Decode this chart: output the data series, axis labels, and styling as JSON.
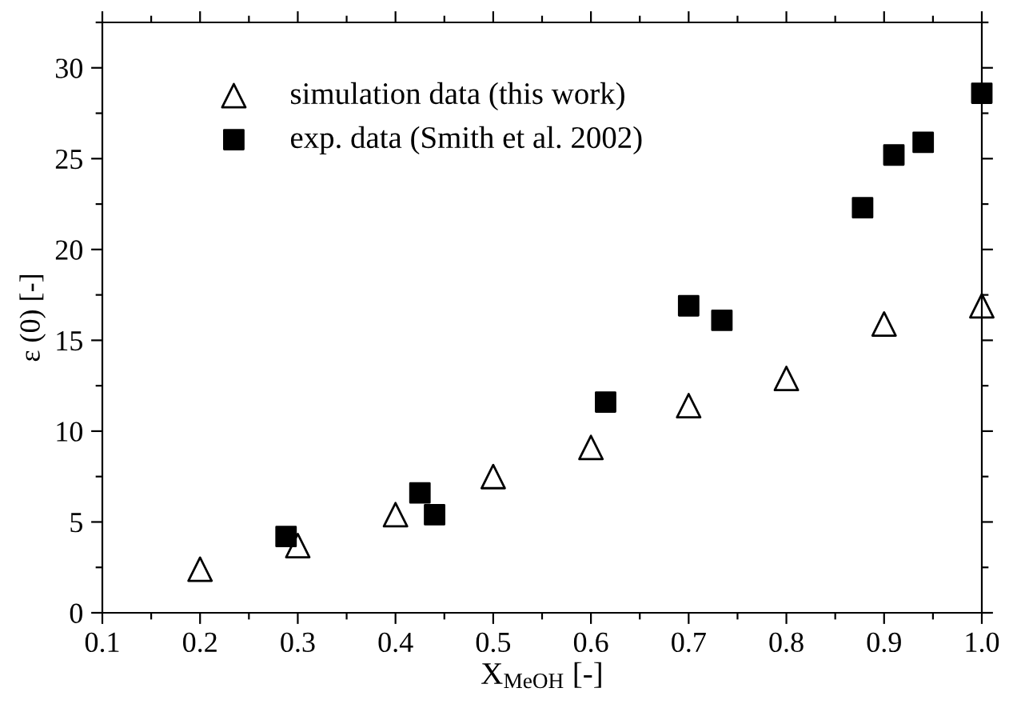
{
  "chart_data": {
    "type": "scatter",
    "xlabel": "X$_{MeOH}$ [-]",
    "ylabel": "ε (0) [-]",
    "series": [
      {
        "name": "simulation data (this work)",
        "color": "#000000",
        "marker": "triangle",
        "x": [
          0.2,
          0.3,
          0.4,
          0.5,
          0.6,
          0.7,
          0.8,
          0.9,
          1.0
        ],
        "values": [
          2.4,
          3.7,
          5.4,
          7.5,
          9.1,
          11.4,
          12.9,
          15.9,
          16.9
        ]
      },
      {
        "name": "exp. data (Smith et al. 2002)",
        "color": "#000000",
        "marker": "square",
        "x": [
          0.288,
          0.425,
          0.44,
          0.615,
          0.7,
          0.734,
          0.878,
          0.91,
          0.94,
          1.0
        ],
        "values": [
          4.2,
          6.6,
          5.4,
          11.6,
          16.9,
          16.1,
          22.3,
          25.2,
          25.9,
          28.6
        ]
      }
    ],
    "xlim": [
      0.1,
      1.0
    ],
    "ylim": [
      0,
      32.5
    ],
    "xticks": [
      0.1,
      {
        "value": 0.15,
        "label": null
      },
      0.2,
      {
        "value": 0.25,
        "label": null
      },
      0.3,
      {
        "value": 0.35,
        "label": null
      },
      0.4,
      {
        "value": 0.45,
        "label": null
      },
      0.5,
      {
        "value": 0.55,
        "label": null
      },
      0.6,
      {
        "value": 0.65,
        "label": null
      },
      0.7,
      {
        "value": 0.75,
        "label": null
      },
      0.8,
      {
        "value": 0.85,
        "label": null
      },
      0.9,
      {
        "value": 0.95,
        "label": null
      },
      {
        "value": 1.0,
        "label": "1.0"
      }
    ],
    "yticks": [
      0,
      {
        "value": 2.5,
        "label": null
      },
      5,
      {
        "value": 7.5,
        "label": null
      },
      10,
      {
        "value": 12.5,
        "label": null
      },
      15,
      {
        "value": 17.5,
        "label": null
      },
      20,
      {
        "value": 22.5,
        "label": null
      },
      25,
      {
        "value": 27.5,
        "label": null
      },
      30,
      {
        "value": 32.5,
        "label": null
      }
    ],
    "grid": false,
    "legend": "top left"
  }
}
